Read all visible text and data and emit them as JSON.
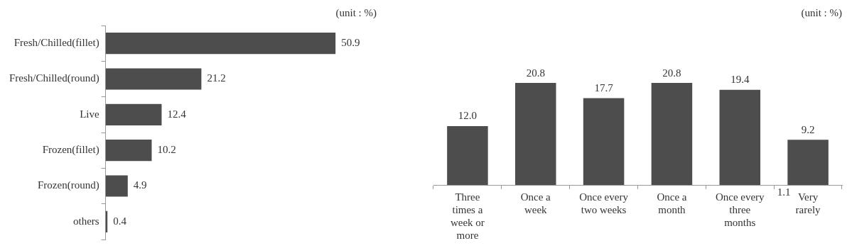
{
  "chart_data": [
    {
      "type": "bar",
      "orientation": "horizontal",
      "subtitle": "(unit : %)",
      "categories": [
        "Fresh/Chilled(fillet)",
        "Fresh/Chilled(round)",
        "Live",
        "Frozen(fillet)",
        "Frozen(round)",
        "others"
      ],
      "values": [
        50.9,
        21.2,
        12.4,
        10.2,
        4.9,
        0.4
      ],
      "value_labels": [
        "50.9",
        "21.2",
        "12.4",
        "10.2",
        "4.9",
        "0.4"
      ],
      "color": "#4d4d4d",
      "grid": false,
      "legend": false
    },
    {
      "type": "bar",
      "subtitle": "(unit : %)",
      "categories": [
        "Three times a week or more",
        "Once a week",
        "Once every two weeks",
        "Once a month",
        "Once every three months",
        "Very rarely"
      ],
      "values": [
        12.0,
        20.8,
        17.7,
        20.8,
        19.4,
        9.2
      ],
      "value_labels": [
        "12.0",
        "20.8",
        "17.7",
        "20.8",
        "19.4",
        "9.2"
      ],
      "color": "#4d4d4d",
      "grid": false,
      "legend": false,
      "annotations": [
        "1.1"
      ]
    }
  ]
}
